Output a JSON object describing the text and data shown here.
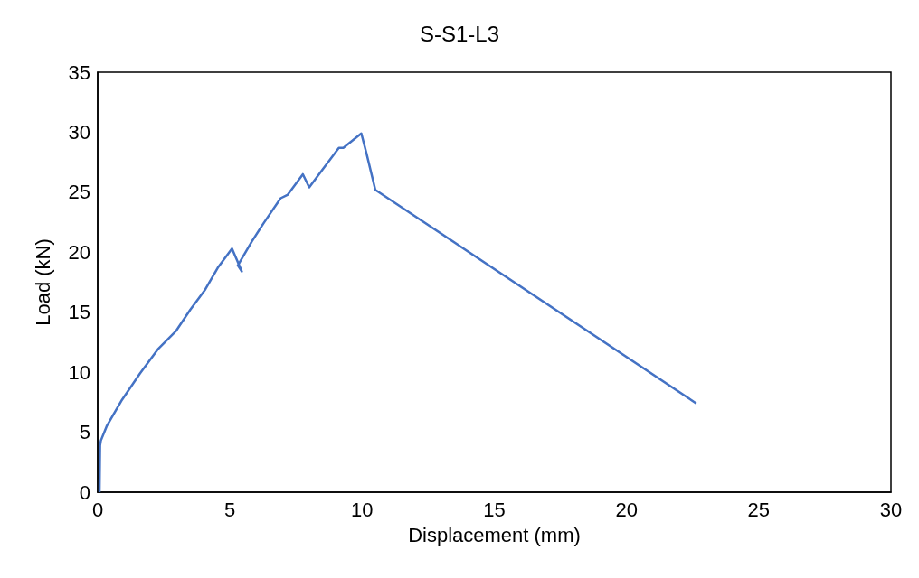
{
  "chart_data": {
    "type": "line",
    "title": "S-S1-L3",
    "xlabel": "Displacement (mm)",
    "ylabel": "Load (kN)",
    "xlim": [
      0,
      30
    ],
    "xticks": [
      0,
      5,
      10,
      15,
      20,
      25,
      30
    ],
    "ylim": [
      0,
      35
    ],
    "yticks": [
      0,
      5,
      10,
      15,
      20,
      25,
      30,
      35
    ],
    "grid": false,
    "marker": "none",
    "line_style": "solid",
    "series": [
      {
        "color": "#4472c4",
        "x": [
          0.07,
          0.09,
          0.12,
          0.34,
          0.92,
          1.6,
          2.27,
          2.95,
          3.5,
          4.07,
          4.54,
          5.08,
          5.45,
          5.3,
          5.83,
          6.27,
          6.92,
          7.19,
          7.76,
          8.0,
          8.44,
          9.12,
          9.29,
          9.97,
          10.17,
          10.5,
          22.64
        ],
        "values": [
          0,
          3.9,
          4.3,
          5.5,
          7.7,
          9.9,
          11.9,
          13.4,
          15.2,
          16.9,
          18.7,
          20.3,
          18.4,
          18.9,
          20.9,
          22.4,
          24.5,
          24.8,
          26.5,
          25.4,
          26.7,
          28.7,
          28.7,
          29.9,
          28.2,
          25.2,
          7.4
        ]
      }
    ]
  }
}
